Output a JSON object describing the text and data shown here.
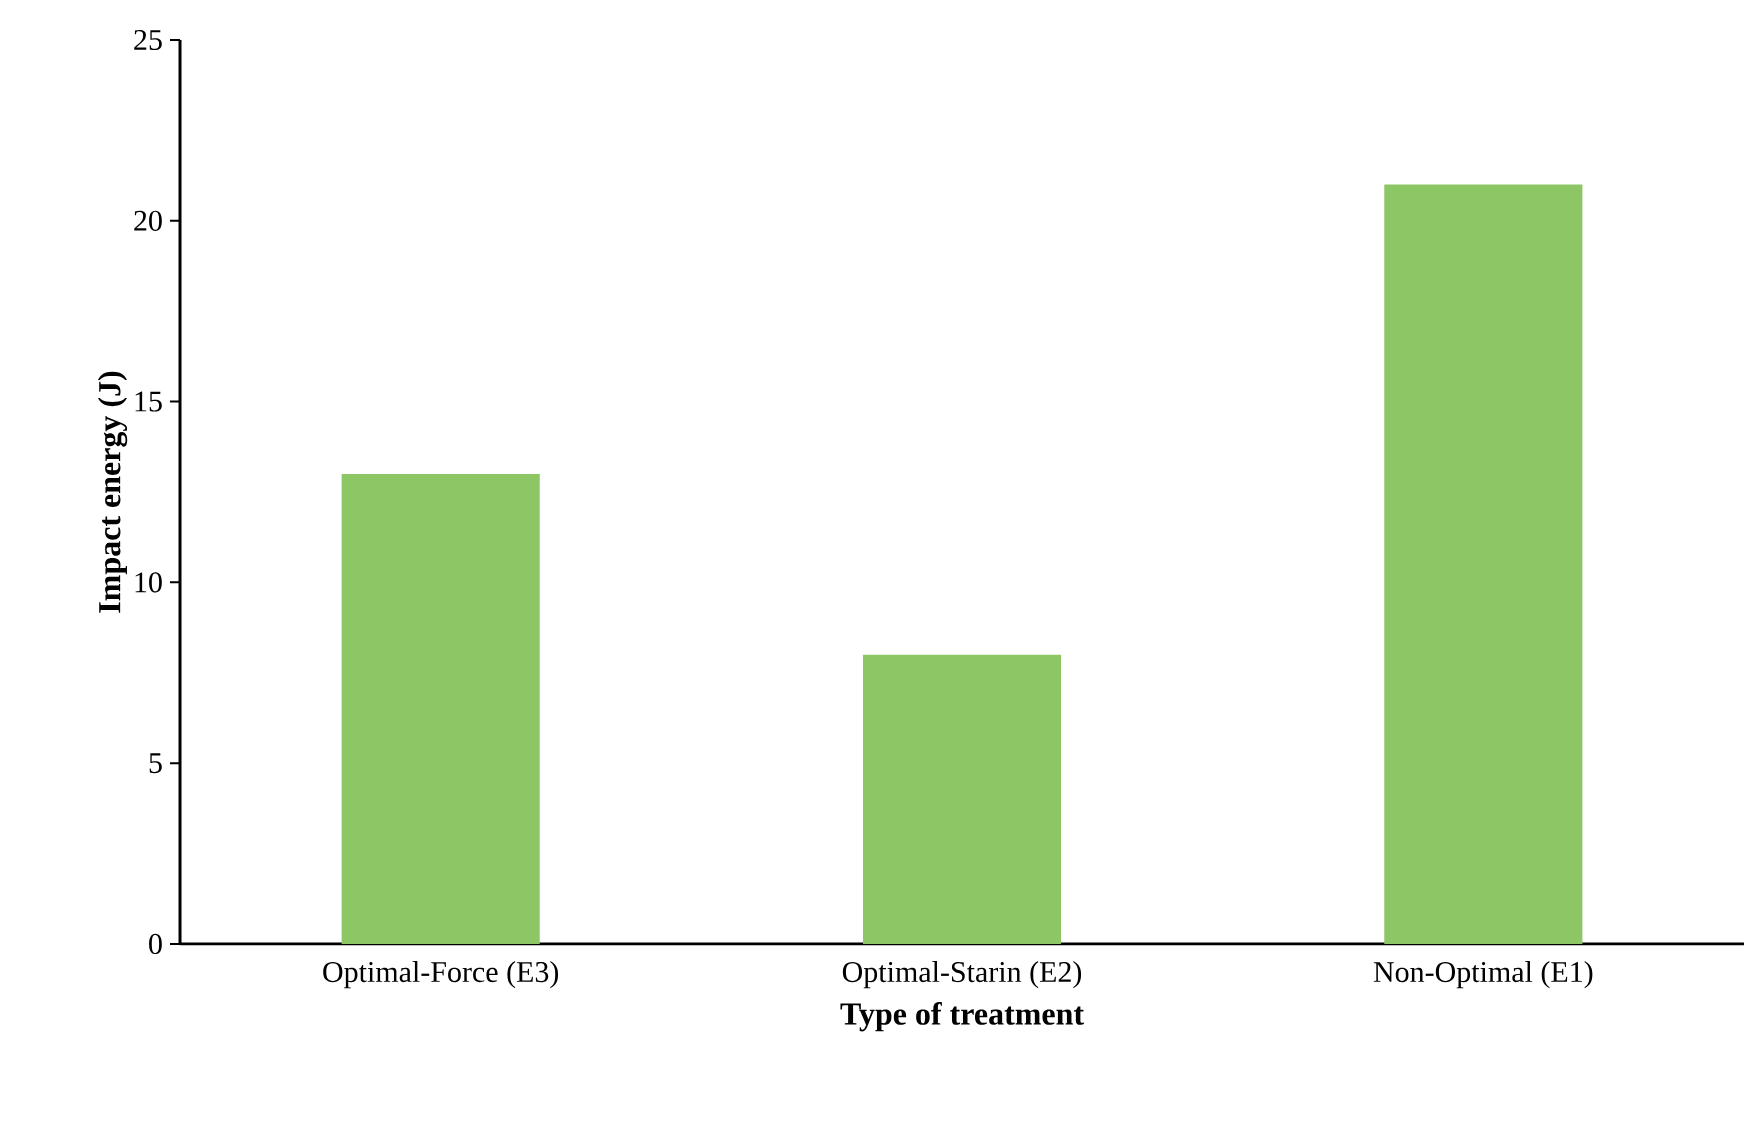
{
  "chart_data": {
    "type": "bar",
    "xlabel": "Type of treatment",
    "ylabel": "Impact energy (J)",
    "categories": [
      "Optimal-Force (E3)",
      "Optimal-Starin (E2)",
      "Non-Optimal (E1)"
    ],
    "values": [
      13,
      8,
      21
    ],
    "color": "#8cc665",
    "ylim": [
      0,
      25
    ],
    "yticks": [
      0,
      5,
      10,
      15,
      20,
      25
    ],
    "grid": false
  }
}
